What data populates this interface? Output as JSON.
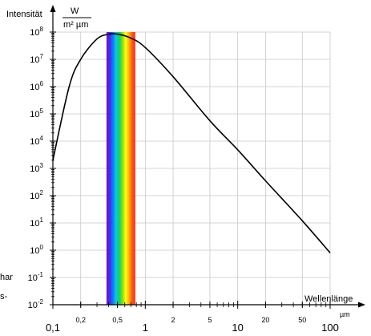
{
  "chart_data": {
    "type": "line",
    "title": "",
    "ylabel": "Intensität",
    "y_unit_numerator": "W",
    "y_unit_denominator": "m² µm",
    "xlabel": "Wellenlänge",
    "x_unit": "µm",
    "x_scale": "log",
    "y_scale": "log",
    "xlim": [
      0.1,
      100
    ],
    "ylim": [
      0.01,
      100000000
    ],
    "grid": true,
    "x_tick_labels": [
      {
        "value": 0.1,
        "label": "0,1",
        "major": true
      },
      {
        "value": 0.2,
        "label": "0,2",
        "major": false
      },
      {
        "value": 0.5,
        "label": "0,5",
        "major": false
      },
      {
        "value": 1,
        "label": "1",
        "major": true
      },
      {
        "value": 2,
        "label": "2",
        "major": false
      },
      {
        "value": 5,
        "label": "5",
        "major": false
      },
      {
        "value": 10,
        "label": "10",
        "major": true
      },
      {
        "value": 20,
        "label": "20",
        "major": false
      },
      {
        "value": 50,
        "label": "50",
        "major": false
      },
      {
        "value": 100,
        "label": "100",
        "major": true
      }
    ],
    "y_tick_labels": [
      {
        "exp": -2,
        "base": "10",
        "sup": "-2"
      },
      {
        "exp": -1,
        "base": "10",
        "sup": "-1"
      },
      {
        "exp": 0,
        "base": "10",
        "sup": "0"
      },
      {
        "exp": 1,
        "base": "10",
        "sup": "1"
      },
      {
        "exp": 2,
        "base": "10",
        "sup": "2"
      },
      {
        "exp": 3,
        "base": "10",
        "sup": "3"
      },
      {
        "exp": 4,
        "base": "10",
        "sup": "4"
      },
      {
        "exp": 5,
        "base": "10",
        "sup": "5"
      },
      {
        "exp": 6,
        "base": "10",
        "sup": "6"
      },
      {
        "exp": 7,
        "base": "10",
        "sup": "7"
      },
      {
        "exp": 8,
        "base": "10",
        "sup": "8"
      }
    ],
    "series": [
      {
        "x": [
          0.1,
          0.15,
          0.2,
          0.3,
          0.4,
          0.5,
          0.7,
          1,
          2,
          5,
          10,
          20,
          50,
          100
        ],
        "y": [
          2000,
          1000000,
          10000000,
          56000000,
          83000000,
          84000000,
          60000000,
          27000000,
          2300000,
          56000,
          4800,
          350,
          12,
          0.8
        ]
      }
    ],
    "spectrum_band": {
      "x_start": 0.38,
      "x_end": 0.78
    },
    "colors": {
      "curve": "#000000",
      "grid": "#c8c8c8",
      "axis": "#000000",
      "spectrum": [
        "#7a00c8",
        "#3a20e8",
        "#0070ff",
        "#00c8e0",
        "#00d060",
        "#80e000",
        "#ffff00",
        "#ffb000",
        "#ff5000",
        "#ff2020"
      ]
    }
  },
  "side_text": {
    "line1": "har",
    "line2": "s-"
  }
}
